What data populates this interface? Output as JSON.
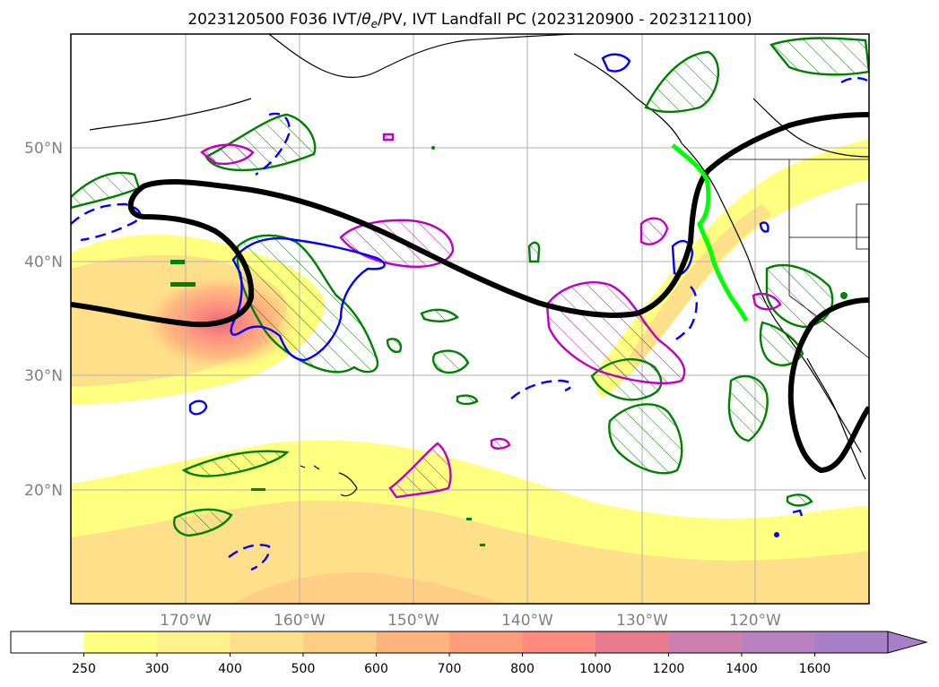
{
  "title": {
    "prefix": "2023120500 F036 IVT/",
    "theta": "θ",
    "theta_sub": "e",
    "suffix": "/PV, IVT Landfall PC (2023120900 - 2023121100)"
  },
  "map": {
    "lon_range": [
      -180,
      -110
    ],
    "lat_range": [
      10,
      60
    ],
    "lat_ticks": [
      {
        "value": 50,
        "label": "50°N"
      },
      {
        "value": 40,
        "label": "40°N"
      },
      {
        "value": 30,
        "label": "30°N"
      },
      {
        "value": 20,
        "label": "20°N"
      }
    ],
    "lon_ticks": [
      {
        "value": -170,
        "label": "170°W"
      },
      {
        "value": -160,
        "label": "160°W"
      },
      {
        "value": -150,
        "label": "150°W"
      },
      {
        "value": -140,
        "label": "140°W"
      },
      {
        "value": -130,
        "label": "130°W"
      },
      {
        "value": -120,
        "label": "120°W"
      }
    ],
    "gridlines": true,
    "layers": [
      {
        "name": "IVT",
        "type": "filled-contour",
        "colormap": "yellow-to-purple"
      },
      {
        "name": "theta-e",
        "type": "contour",
        "color": "#000000"
      },
      {
        "name": "PV",
        "type": "hatched-contour",
        "color": "#008000"
      },
      {
        "name": "PV-magenta",
        "type": "hatched-contour",
        "color": "#c000c0"
      },
      {
        "name": "blue-contour",
        "type": "contour",
        "color": "#0000ff"
      },
      {
        "name": "IVT-landfall",
        "type": "line",
        "color": "#00ff00"
      }
    ]
  },
  "colorbar": {
    "levels": [
      "250",
      "300",
      "400",
      "500",
      "600",
      "700",
      "800",
      "1000",
      "1200",
      "1400",
      "1600"
    ],
    "colors": [
      "#ffffff",
      "#ffff80",
      "#fff28c",
      "#ffe08a",
      "#ffce85",
      "#ffb47e",
      "#ff9c7a",
      "#ff8a80",
      "#e87c8e",
      "#cc80b0",
      "#b880c0",
      "#a880c8"
    ],
    "extend": "max"
  }
}
